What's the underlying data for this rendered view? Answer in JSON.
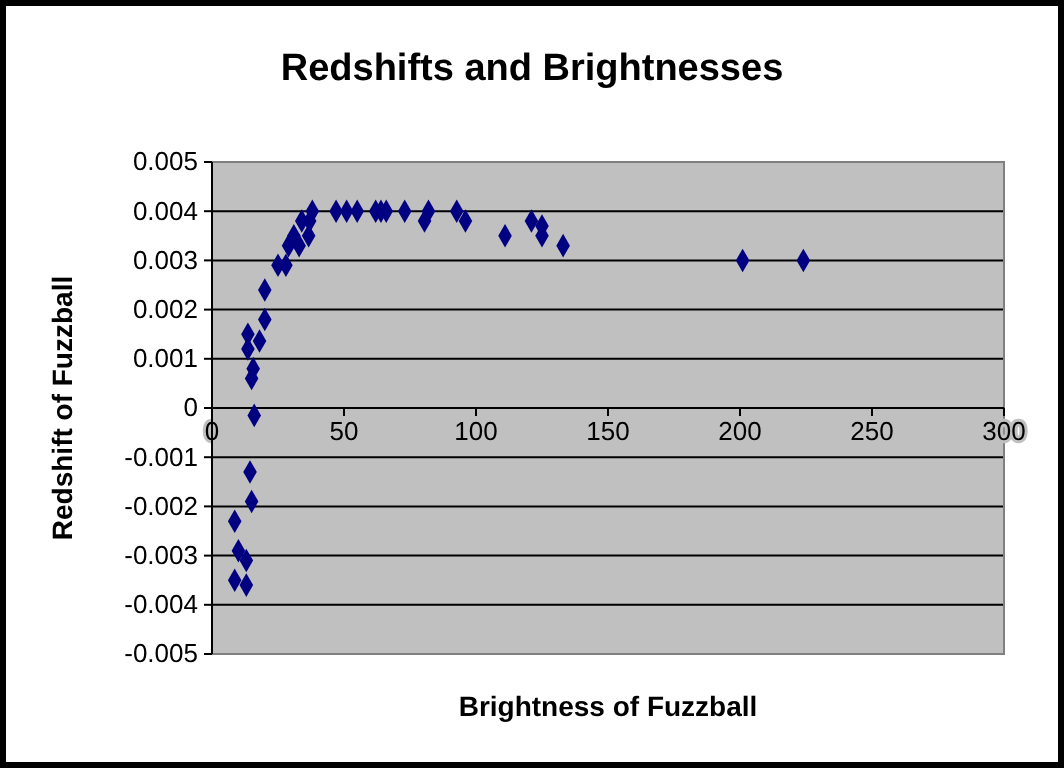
{
  "chart_data": {
    "type": "scatter",
    "title": "Redshifts and Brightnesses",
    "xlabel": "Brightness of Fuzzball",
    "ylabel": "Redshift of Fuzzball",
    "xlim": [
      0,
      300
    ],
    "xticks": [
      0,
      50,
      100,
      150,
      200,
      250,
      300
    ],
    "ylim": [
      -0.005,
      0.005
    ],
    "yticks": [
      -0.005,
      -0.004,
      -0.003,
      -0.002,
      -0.001,
      0,
      0.001,
      0.002,
      0.003,
      0.004,
      0.005
    ],
    "grid": "y",
    "marker": "diamond",
    "series": [
      {
        "color": "#000080",
        "x": [
          47,
          51,
          55,
          62,
          64,
          66,
          73,
          80.5,
          82,
          92.7,
          96,
          38,
          37,
          34,
          36.6,
          31,
          29,
          33,
          25,
          28,
          20,
          20,
          13.6,
          13.6,
          18,
          15.6,
          15,
          16,
          14.4,
          15,
          8.6,
          10,
          13,
          8.6,
          13,
          111,
          121,
          125,
          125,
          133,
          201,
          224
        ],
        "values": [
          0.004,
          0.004,
          0.004,
          0.004,
          0.004,
          0.004,
          0.004,
          0.0038,
          0.004,
          0.004,
          0.0038,
          0.004,
          0.0038,
          0.0038,
          0.0035,
          0.0035,
          0.0033,
          0.0033,
          0.0029,
          0.0029,
          0.0024,
          0.0018,
          0.0015,
          0.0012,
          0.00136,
          0.0008,
          0.0006,
          -0.00015,
          -0.0013,
          -0.0019,
          -0.0023,
          -0.0029,
          -0.0031,
          -0.0035,
          -0.0036,
          0.0035,
          0.0038,
          0.0037,
          0.0035,
          0.0033,
          0.003,
          0.003
        ]
      }
    ]
  }
}
